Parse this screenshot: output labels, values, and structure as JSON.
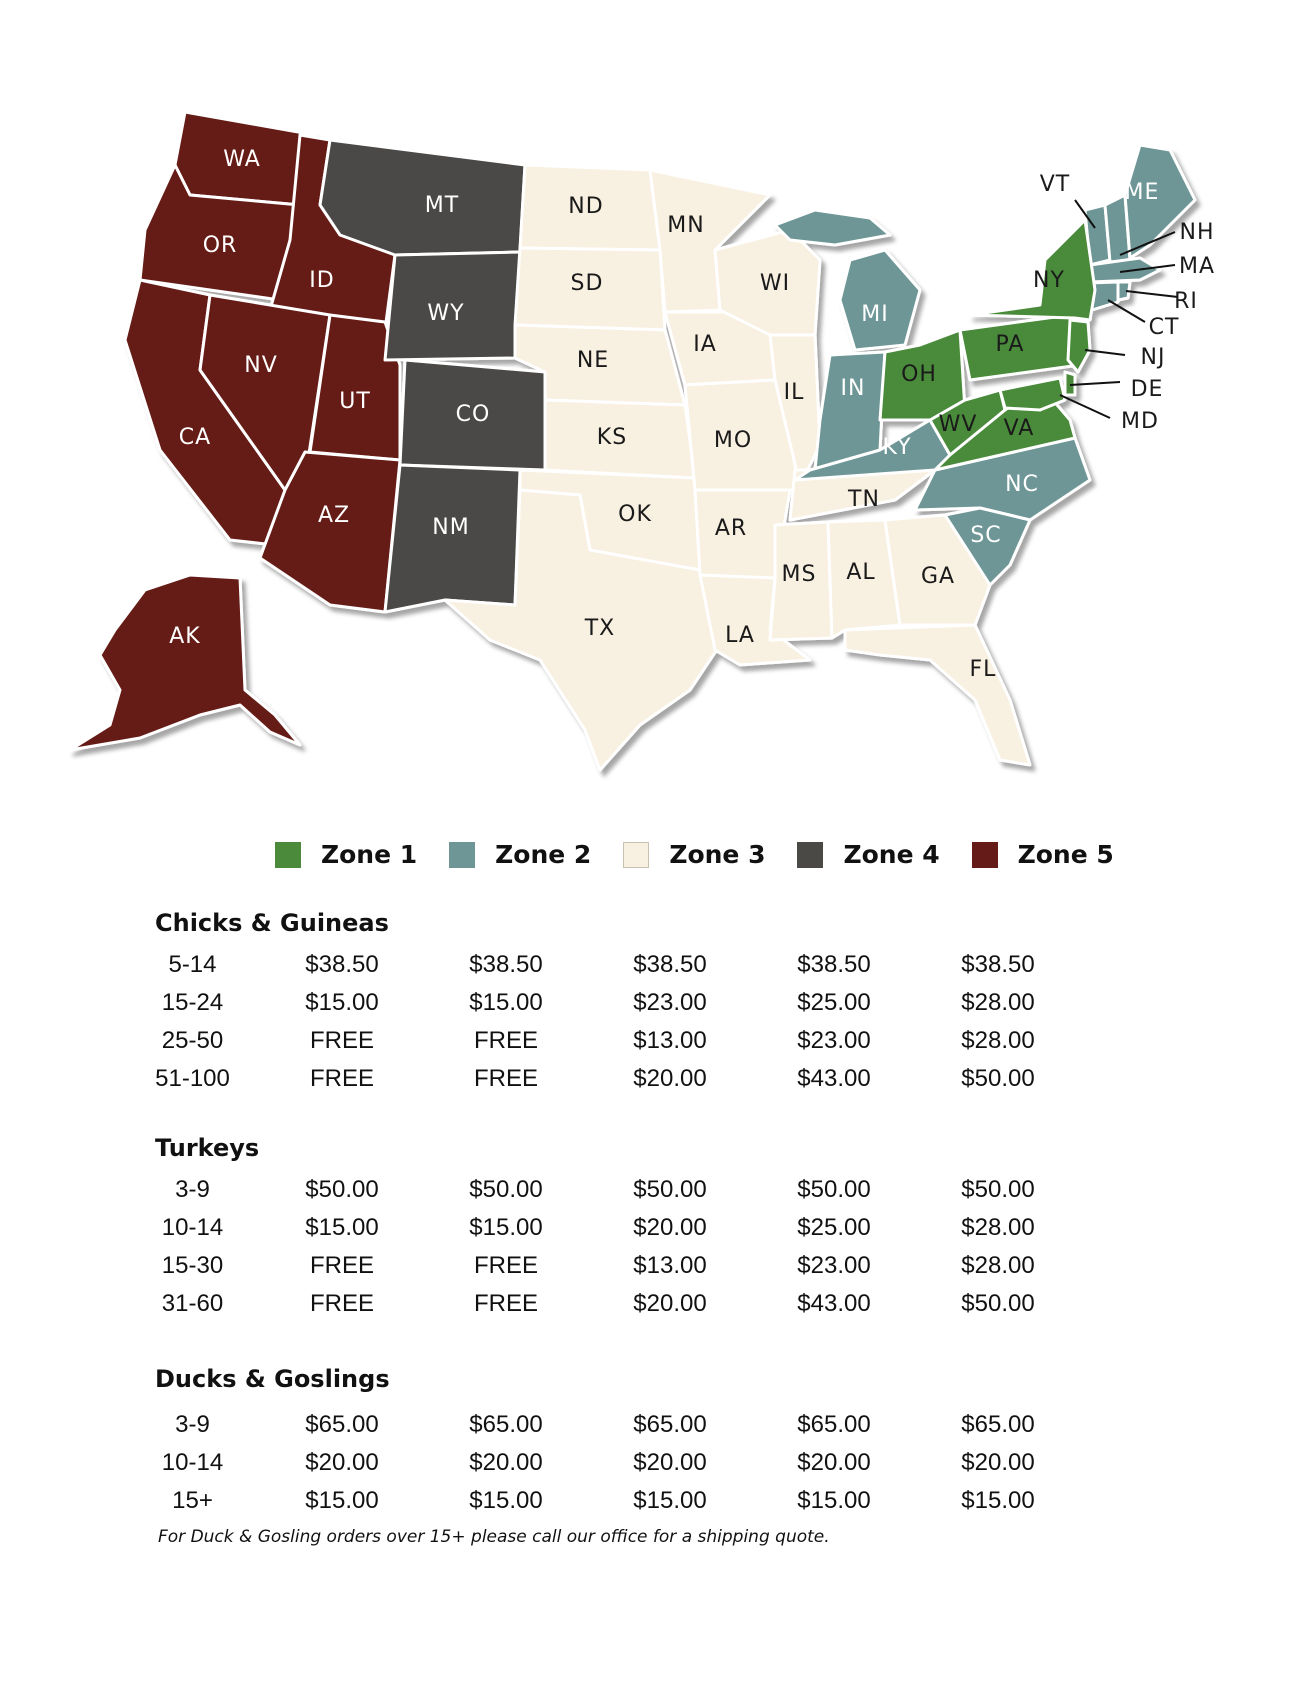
{
  "colors": {
    "zone1": "#4a8a3a",
    "zone2": "#6e9696",
    "zone3": "#f8f0e0",
    "zone4": "#4b4946",
    "zone5": "#651b18"
  },
  "states": {
    "WA": "WA",
    "OR": "OR",
    "CA": "CA",
    "ID": "ID",
    "NV": "NV",
    "UT": "UT",
    "AZ": "AZ",
    "AK": "AK",
    "MT": "MT",
    "WY": "WY",
    "CO": "CO",
    "NM": "NM",
    "ND": "ND",
    "SD": "SD",
    "NE": "NE",
    "KS": "KS",
    "OK": "OK",
    "TX": "TX",
    "MN": "MN",
    "IA": "IA",
    "MO": "MO",
    "AR": "AR",
    "LA": "LA",
    "WI": "WI",
    "IL": "IL",
    "TN": "TN",
    "MS": "MS",
    "AL": "AL",
    "GA": "GA",
    "FL": "FL",
    "MI": "MI",
    "IN": "IN",
    "KY": "KY",
    "NC": "NC",
    "SC": "SC",
    "OH": "OH",
    "WV": "WV",
    "VA": "VA",
    "PA": "PA",
    "NY": "NY",
    "VT": "VT",
    "ME": "ME",
    "NH": "NH",
    "MA": "MA",
    "RI": "RI",
    "CT": "CT",
    "NJ": "NJ",
    "DE": "DE",
    "MD": "MD"
  },
  "legend": [
    "Zone 1",
    "Zone 2",
    "Zone 3",
    "Zone 4",
    "Zone 5"
  ],
  "sections": [
    {
      "title": "Chicks & Guineas",
      "rows": [
        [
          "5-14",
          "$38.50",
          "$38.50",
          "$38.50",
          "$38.50",
          "$38.50"
        ],
        [
          "15-24",
          "$15.00",
          "$15.00",
          "$23.00",
          "$25.00",
          "$28.00"
        ],
        [
          "25-50",
          "FREE",
          "FREE",
          "$13.00",
          "$23.00",
          "$28.00"
        ],
        [
          "51-100",
          "FREE",
          "FREE",
          "$20.00",
          "$43.00",
          "$50.00"
        ]
      ]
    },
    {
      "title": "Turkeys",
      "rows": [
        [
          "3-9",
          "$50.00",
          "$50.00",
          "$50.00",
          "$50.00",
          "$50.00"
        ],
        [
          "10-14",
          "$15.00",
          "$15.00",
          "$20.00",
          "$25.00",
          "$28.00"
        ],
        [
          "15-30",
          "FREE",
          "FREE",
          "$13.00",
          "$23.00",
          "$28.00"
        ],
        [
          "31-60",
          "FREE",
          "FREE",
          "$20.00",
          "$43.00",
          "$50.00"
        ]
      ]
    },
    {
      "title": "Ducks & Goslings",
      "rows": [
        [
          "3-9",
          "$65.00",
          "$65.00",
          "$65.00",
          "$65.00",
          "$65.00"
        ],
        [
          "10-14",
          "$20.00",
          "$20.00",
          "$20.00",
          "$20.00",
          "$20.00"
        ],
        [
          "15+",
          "$15.00",
          "$15.00",
          "$15.00",
          "$15.00",
          "$15.00"
        ]
      ]
    }
  ],
  "note": "For Duck & Gosling orders over 15+ please call our office for a shipping quote."
}
